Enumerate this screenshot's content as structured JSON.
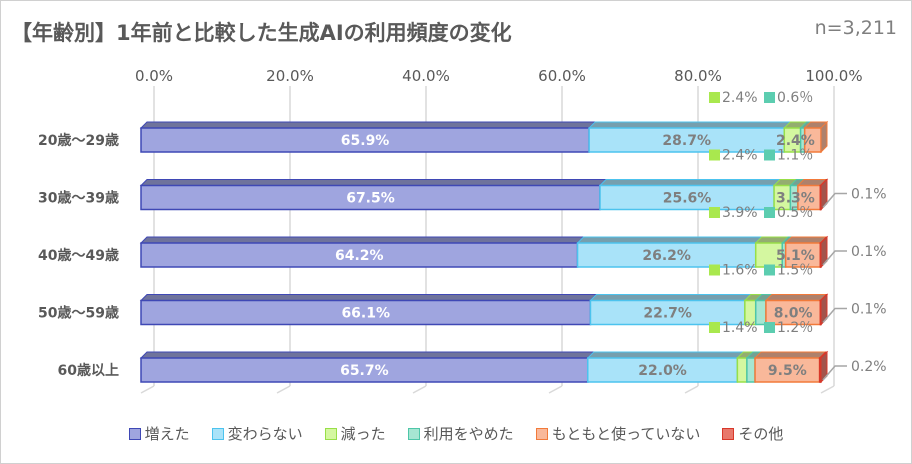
{
  "title": "【年齢別】1年前と比較した生成AIの利用頻度の変化",
  "n": "n=3,211",
  "chart_data": {
    "type": "bar",
    "orientation": "horizontal",
    "stacked": true,
    "percent": true,
    "categories": [
      "20歳～29歳",
      "30歳～39歳",
      "40歳～49歳",
      "50歳～59歳",
      "60歳以上"
    ],
    "xlim": [
      0,
      100
    ],
    "x_ticks": [
      "0.0%",
      "20.0%",
      "40.0%",
      "60.0%",
      "80.0%",
      "100.0%"
    ],
    "grid": true,
    "legend": "bottom",
    "series": [
      {
        "name": "増えた",
        "color": "#9fa5df",
        "edge": "#3f48b5",
        "values": [
          65.9,
          67.5,
          64.2,
          66.1,
          65.7
        ]
      },
      {
        "name": "変わらない",
        "color": "#a9e3f9",
        "edge": "#4cc3ee",
        "values": [
          28.7,
          25.6,
          26.2,
          22.7,
          22.0
        ]
      },
      {
        "name": "減った",
        "color": "#d4f7a0",
        "edge": "#98df48",
        "values": [
          2.4,
          2.4,
          3.9,
          1.6,
          1.4
        ]
      },
      {
        "name": "利用をやめた",
        "color": "#a6e6d2",
        "edge": "#4ec6a8",
        "values": [
          0.6,
          1.1,
          0.5,
          1.5,
          1.2
        ]
      },
      {
        "name": "もともと使っていない",
        "color": "#f9b89a",
        "edge": "#f27a3a",
        "values": [
          2.4,
          3.3,
          5.1,
          8.0,
          9.5
        ]
      },
      {
        "name": "その他",
        "color": "#e8786c",
        "edge": "#d8382a",
        "values": [
          0,
          0.1,
          0.1,
          0.1,
          0.2
        ]
      }
    ],
    "data_labels": {
      "main": [
        [
          "65.9%",
          "28.7%",
          "2.4%"
        ],
        [
          "67.5%",
          "25.6%",
          "3.3%"
        ],
        [
          "64.2%",
          "26.2%",
          "5.1%"
        ],
        [
          "66.1%",
          "22.7%",
          "8.0%"
        ],
        [
          "65.7%",
          "22.0%",
          "9.5%"
        ]
      ],
      "above": [
        [
          "2.4%",
          "0.6％"
        ],
        [
          "2.4%",
          "1.1％"
        ],
        [
          "3.9%",
          "0.5％"
        ],
        [
          "1.6%",
          "1.5％"
        ],
        [
          "1.4%",
          "1.2％"
        ]
      ],
      "other": [
        "",
        "0.1%",
        "0.1%",
        "0.1%",
        "0.2%"
      ]
    }
  }
}
